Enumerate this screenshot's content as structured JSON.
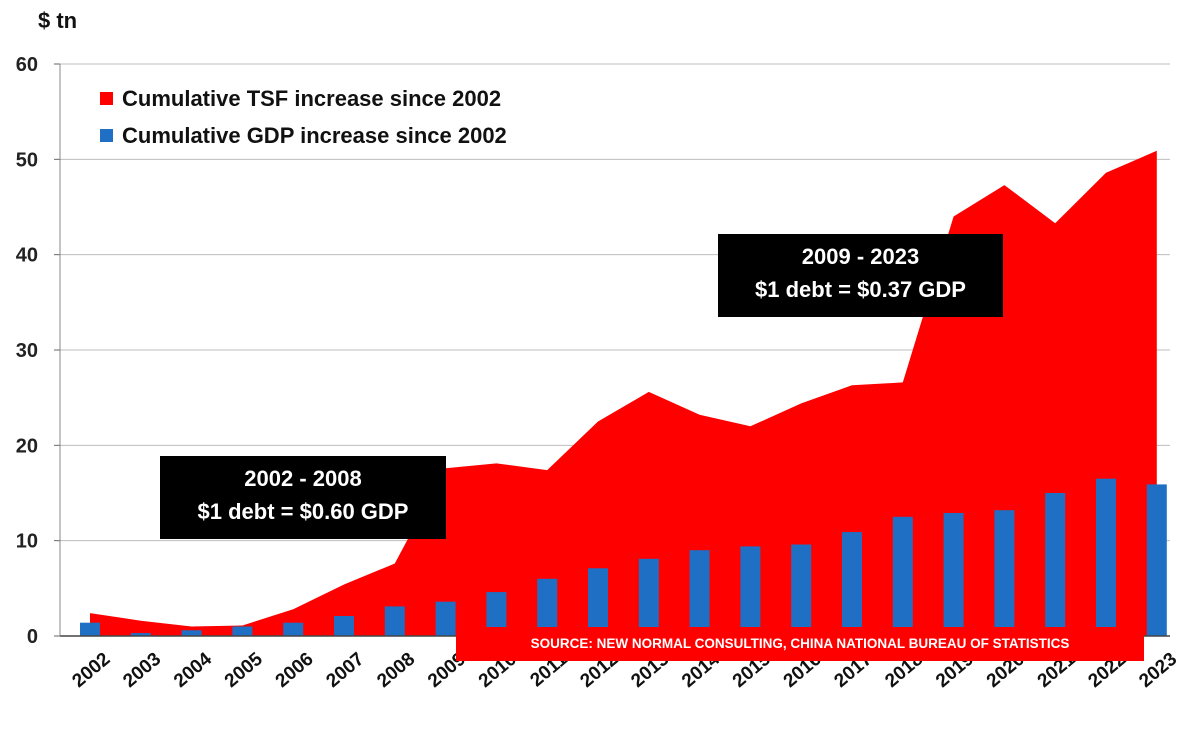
{
  "chart_data": {
    "type": "area+bar",
    "unit_label": "$ tn",
    "ylim": [
      0,
      60
    ],
    "yticks": [
      0,
      10,
      20,
      30,
      40,
      50,
      60
    ],
    "grid": true,
    "legend_position": "top-left",
    "categories": [
      "2002",
      "2003",
      "2004",
      "2005",
      "2006",
      "2007",
      "2008",
      "2009",
      "2010",
      "2011",
      "2012",
      "2013",
      "2014",
      "2015",
      "2016",
      "2017",
      "2018",
      "2019",
      "2020",
      "2021",
      "2022",
      "2023"
    ],
    "series": [
      {
        "name": "Cumulative TSF increase since 2002",
        "kind": "area",
        "color": "#ff0000",
        "values": [
          2.4,
          1.6,
          1.0,
          1.1,
          2.8,
          5.4,
          7.6,
          17.6,
          18.1,
          17.4,
          22.5,
          25.6,
          23.2,
          22.0,
          24.4,
          26.3,
          26.6,
          44.0,
          47.3,
          43.3,
          48.6,
          50.9
        ]
      },
      {
        "name": "Cumulative GDP increase since 2002",
        "kind": "bar",
        "color": "#1f6fc5",
        "values": [
          1.4,
          0.3,
          0.6,
          1.0,
          1.4,
          2.1,
          3.1,
          3.6,
          4.6,
          6.0,
          7.1,
          8.1,
          9.0,
          9.4,
          9.6,
          10.9,
          12.5,
          12.9,
          13.2,
          15.0,
          16.5,
          15.9
        ]
      }
    ],
    "annotations": [
      {
        "line1": "2002 - 2008",
        "line2": "$1 debt = $0.60 GDP"
      },
      {
        "line1": "2009 - 2023",
        "line2": "$1 debt = $0.37 GDP"
      }
    ],
    "source": "SOURCE: NEW NORMAL CONSULTING, CHINA NATIONAL BUREAU OF STATISTICS"
  }
}
